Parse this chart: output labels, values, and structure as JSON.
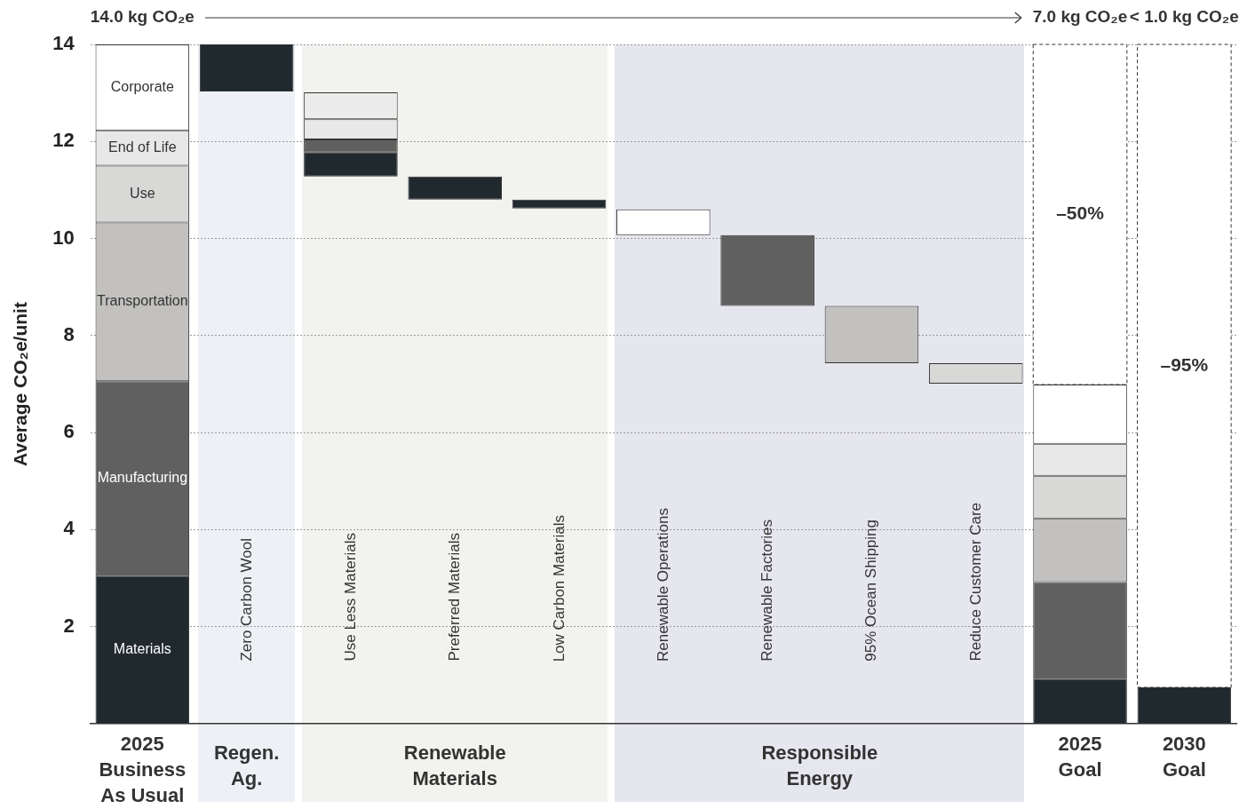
{
  "chart_data": {
    "type": "bar",
    "ylabel": "Average CO₂e/unit",
    "categories": [
      "2025 Business As Usual",
      "Zero Carbon Wool",
      "Use Less Materials",
      "Preferred Materials",
      "Low Carbon Materials",
      "Renewable Operations",
      "Renewable Factories",
      "95% Ocean Shipping",
      "Reduce Customer Care",
      "2025 Goal",
      "2030 Goal"
    ],
    "series": [
      {
        "name": "Materials",
        "color": "#20292e",
        "values": [
          3.05,
          0.97,
          0.49,
          0.48,
          0.18,
          null,
          null,
          null,
          null,
          0.93,
          0.75
        ],
        "base": [
          0,
          13.03,
          11.28,
          10.8,
          10.62,
          null,
          null,
          null,
          null,
          0,
          0
        ]
      },
      {
        "name": "Manufacturing",
        "color": "#606060",
        "values": [
          4.01,
          null,
          0.27,
          null,
          null,
          null,
          1.46,
          null,
          null,
          1.99,
          null
        ],
        "base": [
          3.05,
          null,
          11.77,
          null,
          null,
          null,
          8.61,
          null,
          null,
          0.93,
          null
        ]
      },
      {
        "name": "Transportation",
        "color": "#c2c1bf",
        "values": [
          3.27,
          null,
          null,
          null,
          null,
          null,
          null,
          1.18,
          null,
          1.31,
          null
        ],
        "base": [
          7.06,
          null,
          null,
          null,
          null,
          null,
          null,
          7.43,
          null,
          2.92,
          null
        ]
      },
      {
        "name": "Use",
        "color": "#d8d8d7",
        "values": [
          1.17,
          null,
          null,
          null,
          null,
          null,
          null,
          null,
          0.42,
          0.88,
          null
        ],
        "base": [
          10.33,
          null,
          null,
          null,
          null,
          null,
          null,
          null,
          7.01,
          4.23,
          null
        ]
      },
      {
        "name": "End of Life",
        "color": "#e7e8e7",
        "values": [
          0.73,
          null,
          0.42,
          null,
          null,
          null,
          null,
          null,
          null,
          0.66,
          null
        ],
        "base": [
          11.5,
          null,
          12.04,
          null,
          null,
          null,
          null,
          null,
          null,
          5.11,
          null
        ]
      },
      {
        "name": "Corporate",
        "color": "#ffffff",
        "colors": [
          "#ffffff",
          "#ffffff",
          "#ebeceb",
          "#ffffff",
          "#ffffff",
          "#ffffff",
          "#ffffff",
          "#ffffff",
          "#ffffff",
          "#ffffff",
          "#ffffff"
        ],
        "values": [
          1.77,
          null,
          0.55,
          null,
          null,
          0.53,
          null,
          null,
          null,
          1.22,
          null
        ],
        "base": [
          12.23,
          null,
          12.46,
          null,
          null,
          10.07,
          null,
          null,
          null,
          5.77,
          null
        ]
      },
      {
        "color": "#ffffff",
        "line_style": "dashed",
        "values": [
          null,
          null,
          null,
          null,
          null,
          null,
          null,
          null,
          null,
          7.01,
          13.25
        ],
        "base": [
          null,
          null,
          null,
          null,
          null,
          null,
          null,
          null,
          null,
          6.99,
          0.75
        ]
      }
    ],
    "ylim": [
      0,
      14
    ],
    "yticks": [
      2,
      4,
      6,
      8,
      10,
      12,
      14
    ],
    "grid": "y",
    "annotations": [
      "14.0 kg CO₂e",
      "7.0 kg CO₂e",
      "< 1.0 kg CO₂e",
      "–50%",
      "–95%",
      "Regen. Ag.",
      "Renewable Materials",
      "Responsible Energy"
    ]
  }
}
